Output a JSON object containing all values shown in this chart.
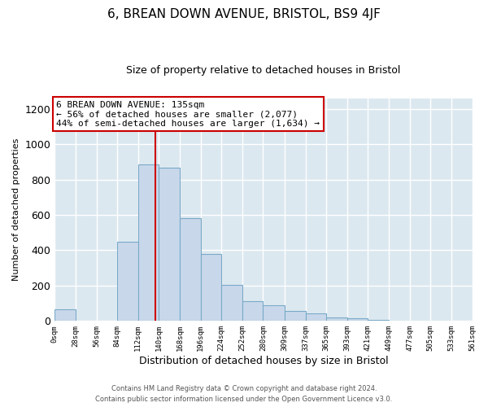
{
  "title": "6, BREAN DOWN AVENUE, BRISTOL, BS9 4JF",
  "subtitle": "Size of property relative to detached houses in Bristol",
  "xlabel": "Distribution of detached houses by size in Bristol",
  "ylabel": "Number of detached properties",
  "bar_color": "#c8d8ea",
  "bar_edgecolor": "#7aaac8",
  "bin_edges": [
    0,
    28,
    56,
    84,
    112,
    140,
    168,
    196,
    224,
    252,
    280,
    309,
    337,
    365,
    393,
    421,
    449,
    477,
    505,
    533,
    561
  ],
  "bar_heights": [
    65,
    0,
    0,
    447,
    884,
    868,
    582,
    377,
    205,
    112,
    90,
    57,
    43,
    20,
    15,
    5,
    3,
    2,
    1,
    0
  ],
  "tick_labels": [
    "0sqm",
    "28sqm",
    "56sqm",
    "84sqm",
    "112sqm",
    "140sqm",
    "168sqm",
    "196sqm",
    "224sqm",
    "252sqm",
    "280sqm",
    "309sqm",
    "337sqm",
    "365sqm",
    "393sqm",
    "421sqm",
    "449sqm",
    "477sqm",
    "505sqm",
    "533sqm",
    "561sqm"
  ],
  "property_size": 135,
  "vline_color": "#cc0000",
  "box_text_line1": "6 BREAN DOWN AVENUE: 135sqm",
  "box_text_line2": "← 56% of detached houses are smaller (2,077)",
  "box_text_line3": "44% of semi-detached houses are larger (1,634) →",
  "box_edgecolor": "#cc0000",
  "ylim": [
    0,
    1260
  ],
  "footer1": "Contains HM Land Registry data © Crown copyright and database right 2024.",
  "footer2": "Contains public sector information licensed under the Open Government Licence v3.0.",
  "fig_background": "#ffffff",
  "plot_background": "#dce8f0",
  "grid_color": "#ffffff",
  "fig_width": 6.0,
  "fig_height": 5.0
}
